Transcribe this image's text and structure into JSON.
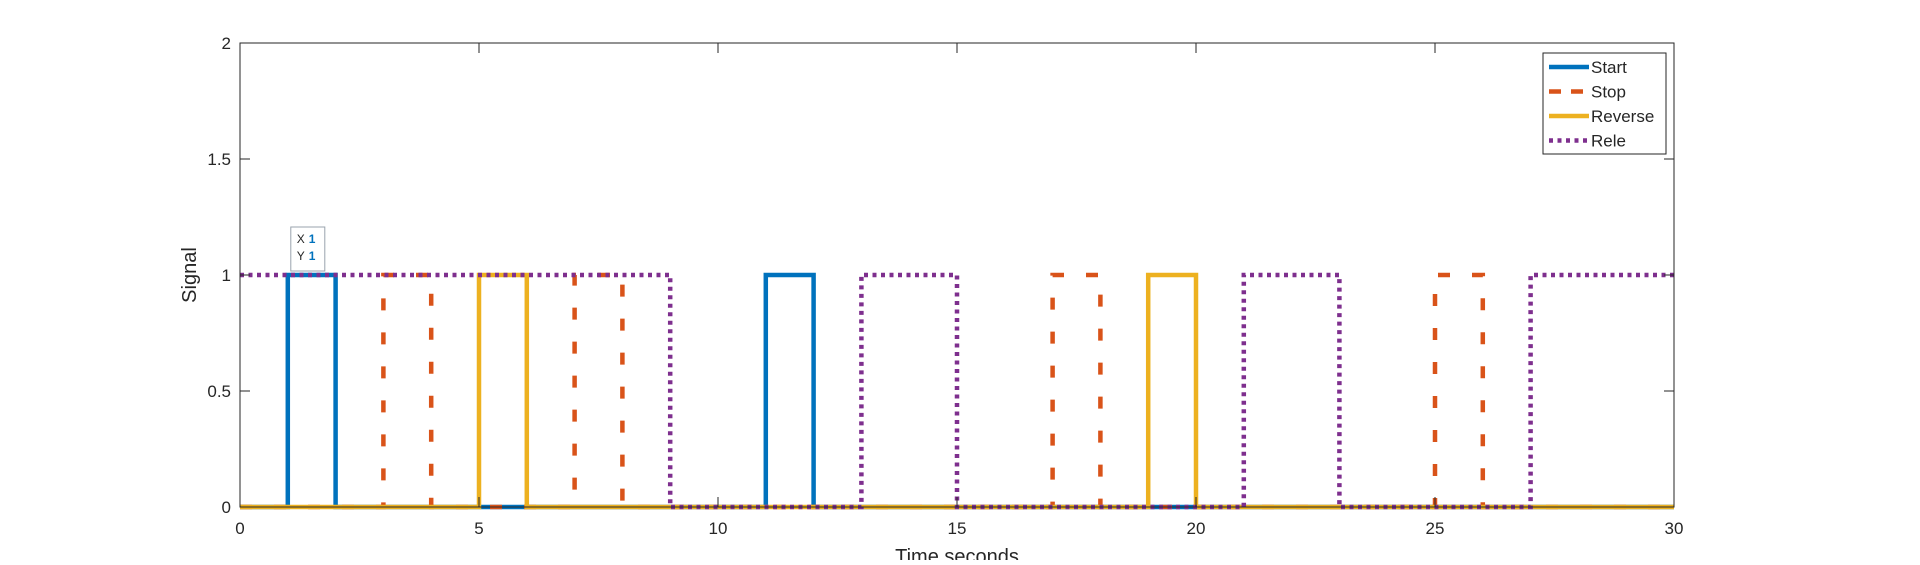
{
  "chart_data": {
    "type": "line",
    "title": "",
    "xlabel": "Time,seconds",
    "ylabel": "Signal",
    "xlim": [
      0,
      30
    ],
    "ylim": [
      0,
      2
    ],
    "xticks": [
      "0",
      "5",
      "10",
      "15",
      "20",
      "25",
      "30"
    ],
    "yticks": [
      "0",
      "0.5",
      "1",
      "1.5",
      "2"
    ],
    "grid": false,
    "legend_position": "top-right",
    "step": true,
    "series": [
      {
        "name": "Start",
        "color": "#0072BD",
        "style": "solid",
        "x": [
          0,
          1,
          2,
          11,
          12,
          30
        ],
        "y": [
          0,
          1,
          0,
          1,
          0,
          0
        ]
      },
      {
        "name": "Stop",
        "color": "#D95319",
        "style": "dashed",
        "x": [
          0,
          3,
          4,
          7,
          8,
          17,
          18,
          25,
          26,
          30
        ],
        "y": [
          0,
          1,
          0,
          1,
          0,
          1,
          0,
          1,
          0,
          0
        ]
      },
      {
        "name": "Reverse",
        "color": "#EDB120",
        "style": "solid",
        "x": [
          0,
          5,
          6,
          19,
          20,
          30
        ],
        "y": [
          0,
          1,
          0,
          1,
          0,
          0
        ]
      },
      {
        "name": "Rele",
        "color": "#7E2F8E",
        "style": "dotted",
        "x": [
          0,
          9,
          13,
          15,
          21,
          23,
          27,
          30
        ],
        "y": [
          1,
          0,
          1,
          0,
          1,
          0,
          1,
          1
        ]
      }
    ],
    "datatip": {
      "x_label": "X",
      "x_value": "1",
      "y_label": "Y",
      "y_value": "1",
      "at_x": 1,
      "at_y": 1
    }
  }
}
